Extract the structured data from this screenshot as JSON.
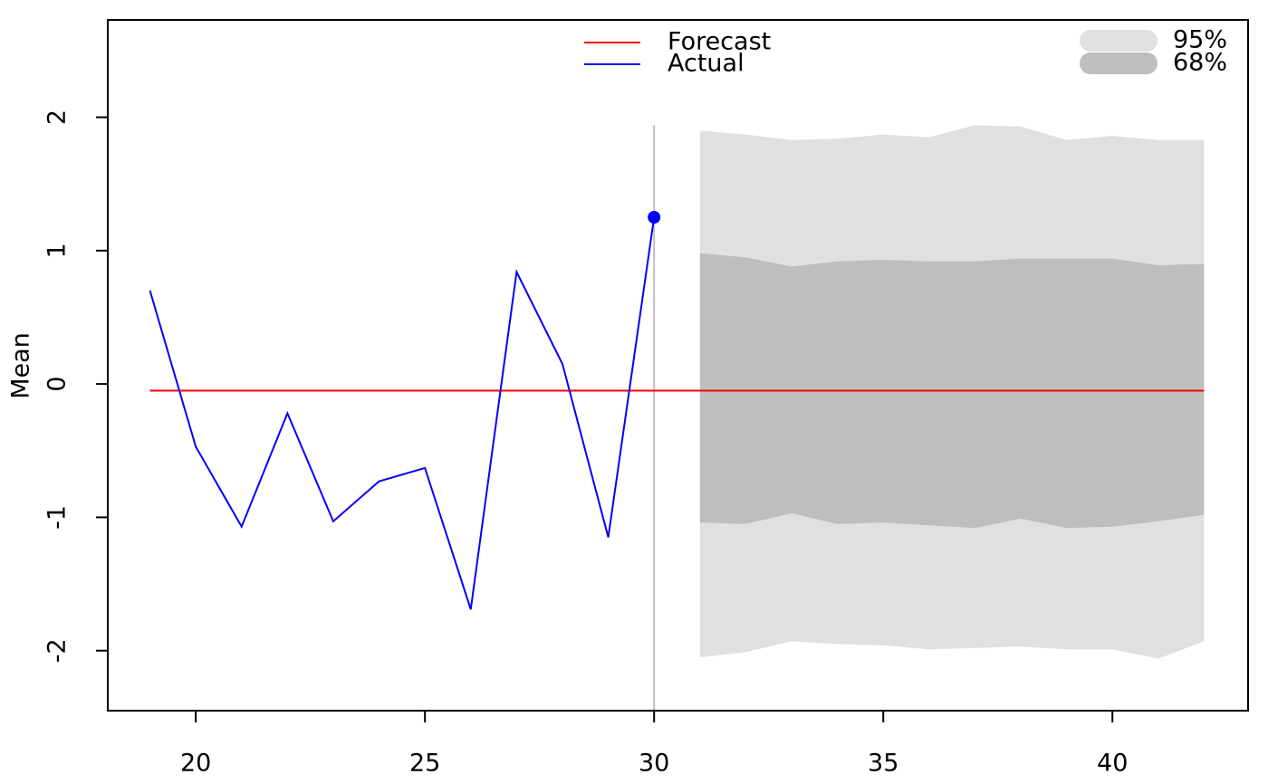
{
  "chart_data": {
    "type": "line",
    "ylabel": "Mean",
    "xlim": [
      18.08,
      42.96
    ],
    "ylim": [
      -2.45,
      2.73
    ],
    "xticks": [
      20,
      25,
      30,
      35,
      40
    ],
    "yticks": [
      -2,
      -1,
      0,
      1,
      2
    ],
    "vline": 30,
    "series": [
      {
        "name": "Forecast",
        "color": "#ff0000",
        "x": [
          19,
          20,
          21,
          22,
          23,
          24,
          25,
          26,
          27,
          28,
          29,
          30,
          31,
          32,
          33,
          34,
          35,
          36,
          37,
          38,
          39,
          40,
          41,
          42
        ],
        "values": [
          -0.05,
          -0.05,
          -0.05,
          -0.05,
          -0.05,
          -0.05,
          -0.05,
          -0.05,
          -0.05,
          -0.05,
          -0.05,
          -0.05,
          -0.05,
          -0.05,
          -0.05,
          -0.05,
          -0.05,
          -0.05,
          -0.05,
          -0.05,
          -0.05,
          -0.05,
          -0.05,
          -0.05
        ]
      },
      {
        "name": "Actual",
        "color": "#0000ff",
        "x": [
          19,
          20,
          21,
          22,
          23,
          24,
          25,
          26,
          27,
          28,
          29,
          30
        ],
        "values": [
          0.7,
          -0.47,
          -1.07,
          -0.22,
          -1.03,
          -0.73,
          -0.63,
          -1.69,
          0.84,
          0.15,
          -1.15,
          1.25
        ]
      }
    ],
    "bands": [
      {
        "name": "95%",
        "color": "#e0e0e0",
        "x": [
          31,
          32,
          33,
          34,
          35,
          36,
          37,
          38,
          39,
          40,
          41,
          42
        ],
        "upper": [
          1.9,
          1.87,
          1.83,
          1.84,
          1.87,
          1.85,
          1.94,
          1.93,
          1.83,
          1.86,
          1.83,
          1.83
        ],
        "lower": [
          -2.05,
          -2.01,
          -1.93,
          -1.95,
          -1.96,
          -1.99,
          -1.98,
          -1.97,
          -1.99,
          -1.99,
          -2.06,
          -1.93
        ]
      },
      {
        "name": "68%",
        "color": "#bebebe",
        "x": [
          31,
          32,
          33,
          34,
          35,
          36,
          37,
          38,
          39,
          40,
          41,
          42
        ],
        "upper": [
          0.98,
          0.95,
          0.88,
          0.92,
          0.93,
          0.92,
          0.92,
          0.94,
          0.94,
          0.94,
          0.89,
          0.9
        ],
        "lower": [
          -1.04,
          -1.05,
          -0.97,
          -1.05,
          -1.04,
          -1.06,
          -1.08,
          -1.01,
          -1.08,
          -1.07,
          -1.03,
          -0.98
        ]
      }
    ]
  }
}
